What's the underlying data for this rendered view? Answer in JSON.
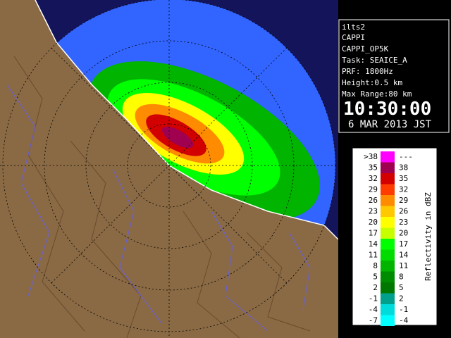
{
  "info": {
    "station": "ilts2",
    "product": "CAPPI",
    "product_name": "CAPPI_OP5K",
    "task": "Task: SEAICE_A",
    "prf": "PRF: 1800Hz",
    "height": "Height:0.5 km",
    "max_range": "Max Range:80 km",
    "time": "10:30:00",
    "date": "6 MAR 2013 JST"
  },
  "legend": {
    "title": "Reflectivity in dBZ",
    "rows": [
      {
        "low": ">38",
        "high": "---",
        "color": "#ff00ff"
      },
      {
        "low": "35",
        "high": "38",
        "color": "#a00050"
      },
      {
        "low": "32",
        "high": "35",
        "color": "#d20000"
      },
      {
        "low": "29",
        "high": "32",
        "color": "#ff3c00"
      },
      {
        "low": "26",
        "high": "29",
        "color": "#ff8c00"
      },
      {
        "low": "23",
        "high": "26",
        "color": "#ffc800"
      },
      {
        "low": "20",
        "high": "23",
        "color": "#ffff00"
      },
      {
        "low": "17",
        "high": "20",
        "color": "#c8ff00"
      },
      {
        "low": "14",
        "high": "17",
        "color": "#00ff00"
      },
      {
        "low": "11",
        "high": "14",
        "color": "#00dc00"
      },
      {
        "low": "8",
        "high": "11",
        "color": "#00b400"
      },
      {
        "low": "5",
        "high": "8",
        "color": "#008c00"
      },
      {
        "low": "2",
        "high": "5",
        "color": "#007800"
      },
      {
        "low": "-1",
        "high": "2",
        "color": "#00a08c"
      },
      {
        "low": "-4",
        "high": "-1",
        "color": "#00dcdc"
      },
      {
        "low": "-7",
        "high": "-4",
        "color": "#00ffff"
      }
    ]
  }
}
